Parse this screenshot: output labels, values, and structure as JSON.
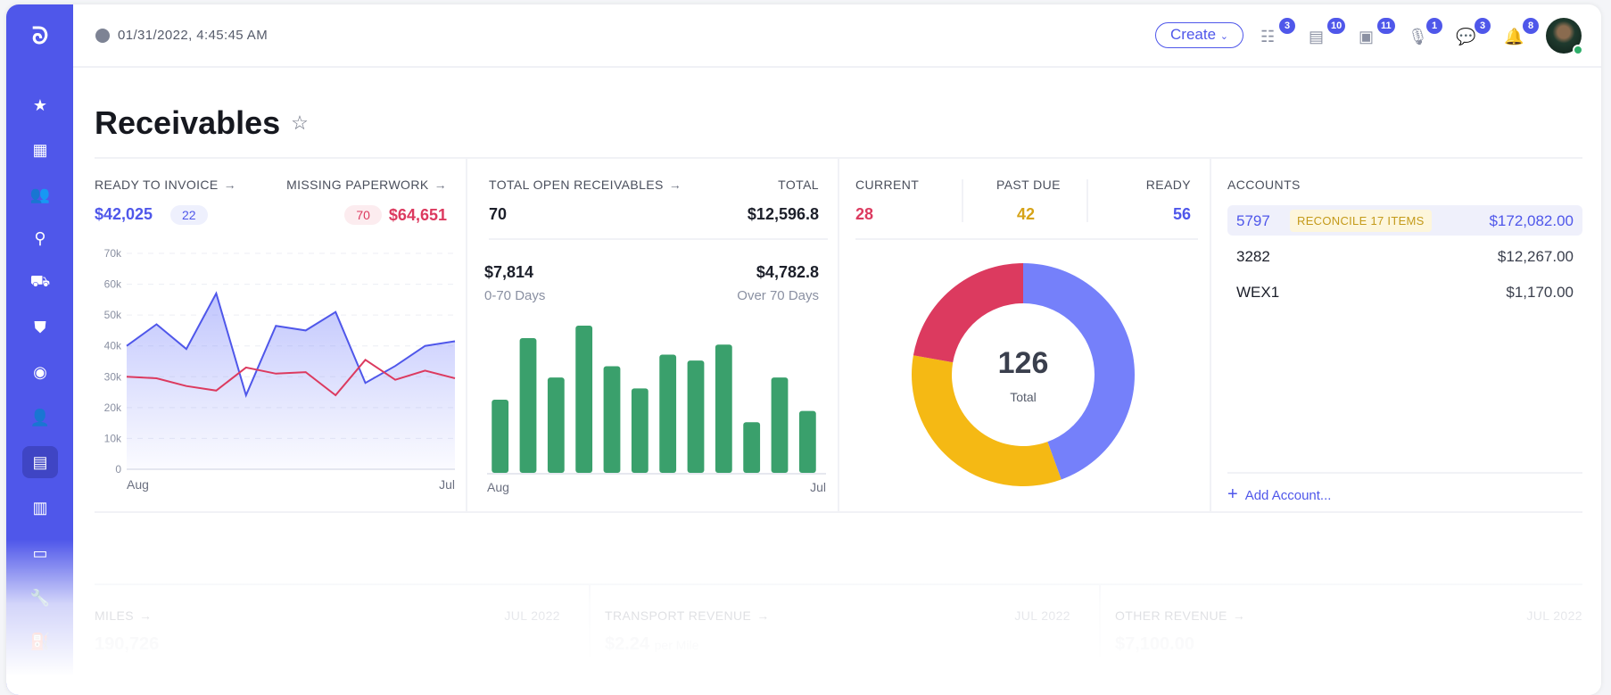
{
  "header": {
    "datetime": "01/31/2022, 4:45:45 AM",
    "create_label": "Create",
    "icons": [
      {
        "name": "tasks-icon",
        "badge": "3"
      },
      {
        "name": "document-icon",
        "badge": "10"
      },
      {
        "name": "clipboard-check-icon",
        "badge": "11"
      },
      {
        "name": "microphone-icon",
        "badge": "1"
      },
      {
        "name": "chat-icon",
        "badge": "3"
      },
      {
        "name": "bell-icon",
        "badge": "8"
      }
    ],
    "avatar_status": "online"
  },
  "sidebar": {
    "items": [
      "star-icon",
      "dashboard-icon",
      "users-group-icon",
      "routes-icon",
      "truck-icon",
      "shield-icon",
      "lifebuoy-icon",
      "contacts-icon",
      "calculator-icon",
      "map-icon",
      "file-icon",
      "wrench-icon",
      "fuel-icon"
    ],
    "active": "calculator-icon"
  },
  "page": {
    "title": "Receivables"
  },
  "invoice": {
    "ready_label": "Ready to invoice",
    "ready_amount": "$42,025",
    "ready_count": "22",
    "missing_label": "Missing paperwork",
    "missing_count": "70",
    "missing_amount": "$64,651"
  },
  "open": {
    "label": "Total open receivables",
    "total_label": "Total",
    "count": "70",
    "total": "$12,596.8",
    "early_amount": "$7,814",
    "early_label": "0-70 Days",
    "late_amount": "$4,782.8",
    "late_label": "Over 70 Days"
  },
  "status": {
    "current_label": "Current",
    "current": "28",
    "past_due_label": "Past due",
    "past_due": "42",
    "ready_label": "Ready",
    "ready": "56",
    "total": "126",
    "total_label": "Total"
  },
  "accounts": {
    "label": "Accounts",
    "rows": [
      {
        "name": "5797",
        "badge": "RECONCILE 17 ITEMS",
        "amount": "$172,082.00"
      },
      {
        "name": "3282",
        "amount": "$12,267.00"
      },
      {
        "name": "WEX1",
        "amount": "$1,170.00"
      }
    ],
    "add_label": "Add Account..."
  },
  "bottom": [
    {
      "label": "Miles",
      "period": "JUL 2022",
      "value": "190,726",
      "suffix": ""
    },
    {
      "label": "Transport revenue",
      "period": "JUL 2022",
      "value": "$2.24",
      "suffix": "per Mile"
    },
    {
      "label": "Other revenue",
      "period": "JUL 2022",
      "value": "$7,100.00",
      "suffix": ""
    }
  ],
  "colors": {
    "primary": "#4f57ea",
    "blue": "#7580fa",
    "red": "#dc3a5f",
    "yellow": "#f5b914",
    "green": "#3aa06c"
  },
  "chart_data": [
    {
      "type": "line",
      "x_tick_labels": [
        "Aug",
        "Jul"
      ],
      "y_tick_labels": [
        "0",
        "10k",
        "20k",
        "30k",
        "40k",
        "50k",
        "60k",
        "70k"
      ],
      "ylim": [
        0,
        70000
      ],
      "grid": true,
      "series": [
        {
          "values": [
            40000,
            47000,
            39000,
            57000,
            24000,
            46500,
            45000,
            51000,
            28000,
            33500,
            40000,
            41500
          ],
          "color": "#4f57ea",
          "area": true
        },
        {
          "values": [
            30000,
            29500,
            27000,
            25500,
            33000,
            31000,
            31500,
            24000,
            35500,
            29000,
            32000,
            29500
          ],
          "color": "#dc3a5f"
        }
      ]
    },
    {
      "type": "bar",
      "x_tick_labels": [
        "Aug",
        "Jul"
      ],
      "values": [
        247,
        455,
        322,
        497,
        360,
        285,
        399,
        379,
        433,
        171,
        322,
        209
      ],
      "color": "#3aa06c"
    },
    {
      "type": "pie",
      "donut": true,
      "categories": [
        "Ready",
        "Past due",
        "Current"
      ],
      "values": [
        56,
        42,
        28
      ],
      "colors": [
        "#7580fa",
        "#f5b914",
        "#dc3a5f"
      ],
      "center_label": "126",
      "center_sublabel": "Total"
    }
  ]
}
